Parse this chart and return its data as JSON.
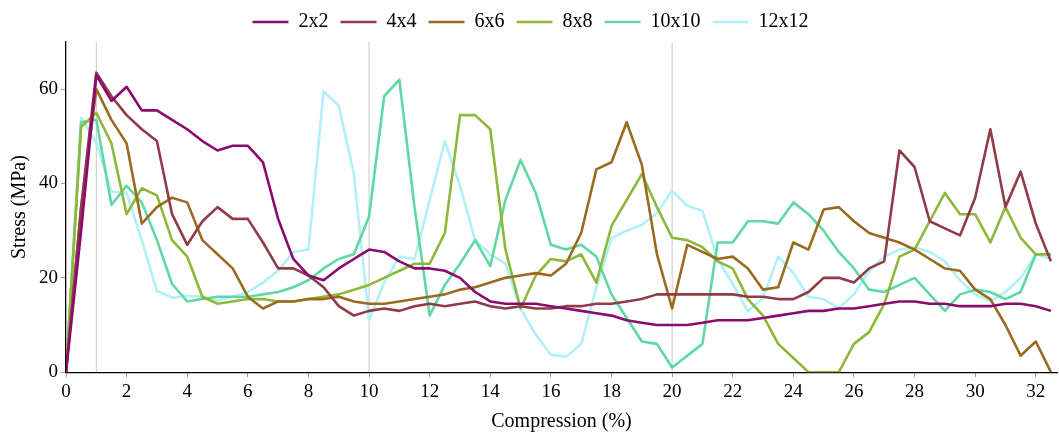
{
  "chart_data": {
    "type": "line",
    "xlabel": "Compression (%)",
    "ylabel": "Stress (MPa)",
    "x": [
      0,
      0.5,
      1,
      1.5,
      2,
      2.5,
      3,
      3.5,
      4,
      4.5,
      5,
      5.5,
      6,
      6.5,
      7,
      7.5,
      8,
      8.5,
      9,
      9.5,
      10,
      10.5,
      11,
      11.5,
      12,
      12.5,
      13,
      13.5,
      14,
      14.5,
      15,
      15.5,
      16,
      16.5,
      17,
      17.5,
      18,
      18.5,
      19,
      19.5,
      20,
      20.5,
      21,
      21.5,
      22,
      22.5,
      23,
      23.5,
      24,
      24.5,
      25,
      25.5,
      26,
      26.5,
      27,
      27.5,
      28,
      28.5,
      29,
      29.5,
      30,
      30.5,
      31,
      31.5,
      32,
      32.5
    ],
    "series": [
      {
        "name": "2x2",
        "color": "#8b0a6e",
        "values": [
          0,
          30,
          63,
          57.5,
          60.5,
          55.5,
          55.5,
          53.5,
          51.5,
          49,
          47,
          48,
          48,
          44.5,
          32.5,
          24,
          20.5,
          19.5,
          22,
          24,
          26,
          25.5,
          23.5,
          22,
          22,
          21.5,
          20,
          17,
          15,
          14.5,
          14.5,
          14.5,
          14,
          13.5,
          13,
          12.5,
          12,
          11,
          10.5,
          10,
          10,
          10,
          10.5,
          11,
          11,
          11,
          11.5,
          12,
          12.5,
          13,
          13,
          13.5,
          13.5,
          14,
          14.5,
          15,
          15,
          14.5,
          14.5,
          14,
          14,
          14,
          14.5,
          14.5,
          14,
          13
        ]
      },
      {
        "name": "4x4",
        "color": "#8f3b48",
        "values": [
          0,
          35,
          63.5,
          58.5,
          54.5,
          51.5,
          49,
          33.5,
          27,
          32,
          35,
          32.5,
          32.5,
          27.5,
          22,
          22,
          20.5,
          18,
          14,
          12,
          13,
          13.5,
          13,
          14,
          14.5,
          14,
          14.5,
          15,
          14,
          13.5,
          14,
          13.5,
          13.5,
          14,
          14,
          14.5,
          14.5,
          15,
          15.5,
          16.5,
          16.5,
          16.5,
          16.5,
          16.5,
          16.5,
          16,
          16,
          15.5,
          15.5,
          17,
          20,
          20,
          19,
          22,
          23.5,
          47,
          43.5,
          32,
          30.5,
          29,
          37,
          51.5,
          35,
          42.5,
          31.5,
          23.5
        ]
      },
      {
        "name": "6x6",
        "color": "#9a6a20",
        "values": [
          0,
          35,
          60,
          53.5,
          48.5,
          31.5,
          35,
          37,
          36,
          28,
          25,
          22,
          16,
          13.5,
          15,
          15,
          15.5,
          15.5,
          16,
          15,
          14.5,
          14.5,
          15,
          15.5,
          16,
          16.5,
          17.5,
          18,
          19,
          20,
          20.5,
          21,
          20.5,
          23,
          29.5,
          43,
          44.5,
          53,
          44,
          25,
          13.5,
          27,
          25.5,
          24,
          24.5,
          22,
          17.5,
          18,
          27.5,
          26,
          34.5,
          35,
          32,
          29.5,
          28.5,
          27.5,
          26,
          24,
          22,
          21.5,
          17.5,
          15.5,
          10,
          3.5,
          6.5,
          0
        ]
      },
      {
        "name": "8x8",
        "color": "#8db83a",
        "values": [
          0,
          52,
          55,
          48.5,
          33.5,
          39,
          37.5,
          28,
          24.5,
          16,
          14.5,
          15,
          15.5,
          15.5,
          15,
          15,
          15.5,
          16,
          16.5,
          17.5,
          18.5,
          20,
          21.5,
          23,
          23,
          29.5,
          54.5,
          54.5,
          51.5,
          26,
          13.5,
          20.5,
          24,
          23.5,
          25,
          19,
          31,
          36.5,
          42,
          35,
          28.5,
          28,
          26.5,
          23.5,
          22,
          15.5,
          12,
          6,
          3,
          0,
          0,
          0,
          6,
          8.5,
          14.5,
          24.5,
          26,
          32,
          38,
          33.5,
          33.5,
          27.5,
          35,
          28.5,
          25,
          25
        ]
      },
      {
        "name": "10x10",
        "color": "#5fd8a2",
        "values": [
          0,
          53,
          53.5,
          35.5,
          39.5,
          36,
          28,
          18.7,
          15,
          15.5,
          16,
          16,
          16,
          16.5,
          17,
          18,
          19.5,
          22,
          24,
          25,
          33,
          58.5,
          62,
          35,
          12,
          18.5,
          23,
          28,
          22.5,
          36.5,
          45,
          38,
          27,
          26,
          27,
          24.5,
          16.5,
          11.5,
          6.5,
          6,
          1,
          3.5,
          6,
          27.5,
          27.5,
          32,
          32,
          31.5,
          36,
          33.5,
          30,
          25.5,
          22,
          17.5,
          17,
          18.5,
          20,
          16.5,
          13,
          16.5,
          17.5,
          17,
          15.5,
          17,
          25,
          25
        ]
      },
      {
        "name": "12x12",
        "color": "#b0f0f8",
        "values": [
          0,
          54,
          48.7,
          38.3,
          38,
          28,
          17.2,
          15.8,
          16.2,
          16,
          15.2,
          16,
          17,
          19,
          21.5,
          25.5,
          26,
          59.5,
          56.5,
          42,
          11,
          19,
          24.5,
          24,
          36.5,
          49,
          39.5,
          28,
          25,
          23,
          13.4,
          8,
          3.7,
          3.3,
          6,
          18,
          28.4,
          30,
          31.2,
          33.7,
          38.5,
          35.3,
          34.2,
          24,
          18.7,
          12.9,
          15.7,
          24.5,
          21,
          16,
          15.5,
          13.5,
          16.5,
          21.5,
          24.5,
          26,
          26.5,
          25.5,
          23.5,
          19.5,
          16.5,
          15,
          17,
          20,
          25,
          24
        ]
      }
    ],
    "xlim": [
      0,
      32.7
    ],
    "xticks": [
      0,
      2,
      4,
      6,
      8,
      10,
      12,
      14,
      16,
      18,
      20,
      22,
      24,
      26,
      28,
      30,
      32
    ],
    "ylim": [
      0,
      70
    ],
    "yticks": [
      0,
      20,
      40,
      60
    ],
    "ref_lines": [
      {
        "axis": "x",
        "value": 1,
        "color": "#c8c8c8"
      },
      {
        "axis": "x",
        "value": 10,
        "color": "#c8c8c8"
      },
      {
        "axis": "x",
        "value": 20,
        "color": "#c8c8c8"
      }
    ],
    "grid": false,
    "legend": "top",
    "marker": "none",
    "line_style": "solid"
  }
}
